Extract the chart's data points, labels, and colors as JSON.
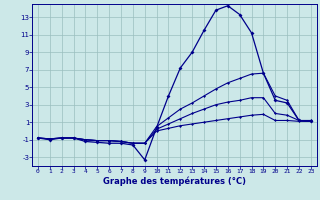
{
  "xlabel": "Graphe des températures (°C)",
  "background_color": "#cce8e8",
  "line_color": "#00008b",
  "grid_color": "#9bbfbf",
  "x_hours": [
    0,
    1,
    2,
    3,
    4,
    5,
    6,
    7,
    8,
    9,
    10,
    11,
    12,
    13,
    14,
    15,
    16,
    17,
    18,
    19,
    20,
    21,
    22,
    23
  ],
  "line1": [
    -0.8,
    -1.0,
    -0.8,
    -0.8,
    -1.2,
    -1.3,
    -1.4,
    -1.4,
    -1.6,
    -3.3,
    0.4,
    4.0,
    7.2,
    9.0,
    11.5,
    13.8,
    14.3,
    13.3,
    11.2,
    6.6,
    3.5,
    3.2,
    1.2,
    1.1
  ],
  "line2": [
    -0.8,
    -0.9,
    -0.8,
    -0.8,
    -1.0,
    -1.1,
    -1.1,
    -1.2,
    -1.4,
    -1.4,
    0.5,
    1.5,
    2.5,
    3.2,
    4.0,
    4.8,
    5.5,
    6.0,
    6.5,
    6.6,
    4.0,
    3.5,
    1.2,
    1.2
  ],
  "line3": [
    -0.8,
    -0.9,
    -0.8,
    -0.8,
    -1.0,
    -1.1,
    -1.1,
    -1.2,
    -1.4,
    -1.4,
    0.2,
    0.8,
    1.4,
    2.0,
    2.5,
    3.0,
    3.3,
    3.5,
    3.8,
    3.8,
    2.0,
    1.8,
    1.2,
    1.1
  ],
  "line4": [
    -0.8,
    -0.9,
    -0.8,
    -0.8,
    -1.0,
    -1.1,
    -1.1,
    -1.2,
    -1.4,
    -1.4,
    0.0,
    0.3,
    0.6,
    0.8,
    1.0,
    1.2,
    1.4,
    1.6,
    1.8,
    1.9,
    1.2,
    1.2,
    1.1,
    1.1
  ],
  "xlim": [
    -0.5,
    23.5
  ],
  "ylim": [
    -4.0,
    14.5
  ],
  "yticks": [
    -3,
    -1,
    1,
    3,
    5,
    7,
    9,
    11,
    13
  ],
  "xticks": [
    0,
    1,
    2,
    3,
    4,
    5,
    6,
    7,
    8,
    9,
    10,
    11,
    12,
    13,
    14,
    15,
    16,
    17,
    18,
    19,
    20,
    21,
    22,
    23
  ]
}
